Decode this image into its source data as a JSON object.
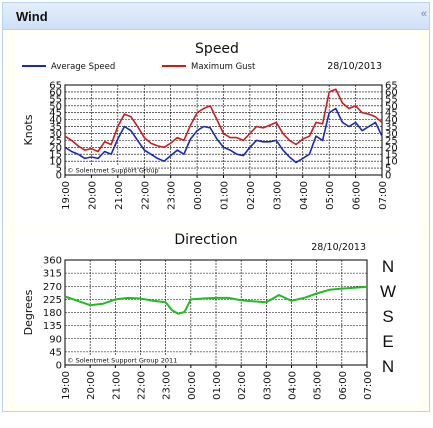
{
  "header": {
    "title": "Wind",
    "collapse_icon": "collapse-icon"
  },
  "chart_data": [
    {
      "type": "line",
      "title": "Speed",
      "date": "28/10/2013",
      "ylabel": "Knots",
      "ylim": [
        0,
        65
      ],
      "yticks": [
        "0",
        "5",
        "10",
        "15",
        "20",
        "25",
        "30",
        "35",
        "40",
        "45",
        "50",
        "55",
        "60",
        "65"
      ],
      "xticks": [
        "19:00",
        "20:00",
        "21:00",
        "22:00",
        "23:00",
        "00:00",
        "01:00",
        "02:00",
        "03:00",
        "04:00",
        "05:00",
        "06:00",
        "07:00"
      ],
      "grid": true,
      "legend": "top",
      "copyright": "© Solentmet Support Group",
      "x_hours": [
        0,
        0.25,
        0.5,
        0.75,
        1,
        1.25,
        1.5,
        1.75,
        2,
        2.25,
        2.5,
        2.75,
        3,
        3.25,
        3.5,
        3.75,
        4,
        4.25,
        4.5,
        4.75,
        5,
        5.25,
        5.5,
        5.75,
        6,
        6.25,
        6.5,
        6.75,
        7,
        7.25,
        7.5,
        7.75,
        8,
        8.25,
        8.5,
        8.75,
        9,
        9.25,
        9.5,
        9.75,
        10,
        10.25,
        10.5,
        10.75,
        11,
        11.25,
        11.5,
        11.75,
        12
      ],
      "series": [
        {
          "name": "Average Speed",
          "color": "#1a2ab8",
          "values": [
            20,
            17,
            15,
            12,
            13,
            12,
            17,
            15,
            26,
            35,
            32,
            25,
            18,
            15,
            12,
            10,
            14,
            18,
            15,
            26,
            32,
            35,
            34,
            26,
            20,
            18,
            15,
            14,
            20,
            25,
            24,
            24,
            25,
            18,
            13,
            9,
            12,
            15,
            28,
            25,
            45,
            48,
            38,
            35,
            38,
            32,
            35,
            38,
            28
          ]
        },
        {
          "name": "Maximum Gust",
          "color": "#c81e1e",
          "values": [
            28,
            25,
            21,
            18,
            19,
            17,
            24,
            22,
            35,
            44,
            42,
            35,
            27,
            23,
            21,
            20,
            23,
            27,
            25,
            36,
            45,
            48,
            50,
            40,
            30,
            27,
            27,
            25,
            30,
            35,
            34,
            36,
            38,
            30,
            25,
            22,
            26,
            28,
            38,
            37,
            60,
            62,
            52,
            48,
            50,
            45,
            44,
            42,
            38
          ]
        }
      ]
    },
    {
      "type": "line",
      "title": "Direction",
      "date": "28/10/2013",
      "ylabel": "Degrees",
      "ylim": [
        0,
        360
      ],
      "yticks": [
        "0",
        "45",
        "90",
        "135",
        "180",
        "225",
        "270",
        "315",
        "360"
      ],
      "xticks": [
        "19:00",
        "20:00",
        "21:00",
        "22:00",
        "23:00",
        "00:00",
        "01:00",
        "02:00",
        "03:00",
        "04:00",
        "05:00",
        "06:00",
        "07:00"
      ],
      "grid": true,
      "copyright": "© Solentmet Support Group 2011",
      "compass": [
        "N",
        "W",
        "S",
        "E",
        "N"
      ],
      "x_hours": [
        0,
        0.5,
        1,
        1.5,
        2,
        2.5,
        3,
        3.5,
        4,
        4.25,
        4.5,
        4.75,
        5,
        5.5,
        6,
        6.5,
        7,
        7.5,
        8,
        8.5,
        9,
        9.5,
        10,
        10.5,
        11,
        11.5,
        12
      ],
      "series": [
        {
          "name": "",
          "color": "#22bb22",
          "values": [
            235,
            220,
            205,
            210,
            225,
            230,
            228,
            220,
            215,
            188,
            176,
            182,
            225,
            228,
            230,
            230,
            222,
            218,
            215,
            240,
            220,
            230,
            245,
            258,
            262,
            265,
            268
          ]
        }
      ]
    }
  ]
}
